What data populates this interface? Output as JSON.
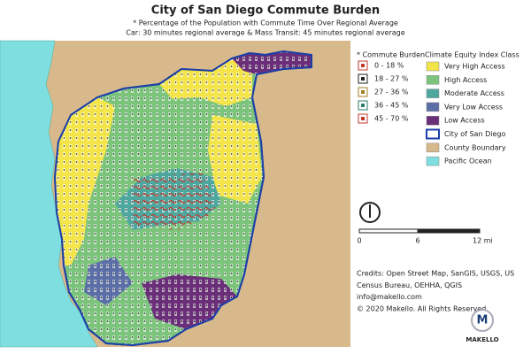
{
  "header": {
    "title": "City of San Diego Commute Burden",
    "subtitle_lines": [
      "* Percentage of the Population with Commute Time Over Regional Average",
      "Car: 30 minutes regional average  & Mass Transit: 45 minutes regional average"
    ]
  },
  "commute_legend": {
    "title": "* Commute Burden",
    "items": [
      "0 - 18 %",
      "18 - 27 %",
      "27 - 36 %",
      "36 - 45 %",
      "45 - 70 %"
    ]
  },
  "climate_legend": {
    "title": "Climate Equity Index Class",
    "items": [
      {
        "label": "Very High Access",
        "color": "#f3e44a"
      },
      {
        "label": "High Access",
        "color": "#7cc47c"
      },
      {
        "label": "Moderate Access",
        "color": "#4ea79f"
      },
      {
        "label": "Very Low Access",
        "color": "#5b6fa6"
      },
      {
        "label": "Low Access",
        "color": "#6a2f78"
      },
      {
        "label": "City of San Diego",
        "color": "#ffffff"
      },
      {
        "label": "County Boundary",
        "color": "#d8b98b"
      },
      {
        "label": "Pacific Ocean",
        "color": "#7fdfe0"
      }
    ]
  },
  "scale_bar": {
    "labels": [
      "0",
      "6",
      "12 mi"
    ]
  },
  "credits": [
    "Credits: Open Street Map, SanGIS, USGS, US",
    "Census Bureau, OEHHA, QGIS",
    "info@makello.com",
    "© 2020 Makello. All Rights Reserved."
  ],
  "logo": {
    "mark": "M",
    "name": "MAKELLO"
  }
}
